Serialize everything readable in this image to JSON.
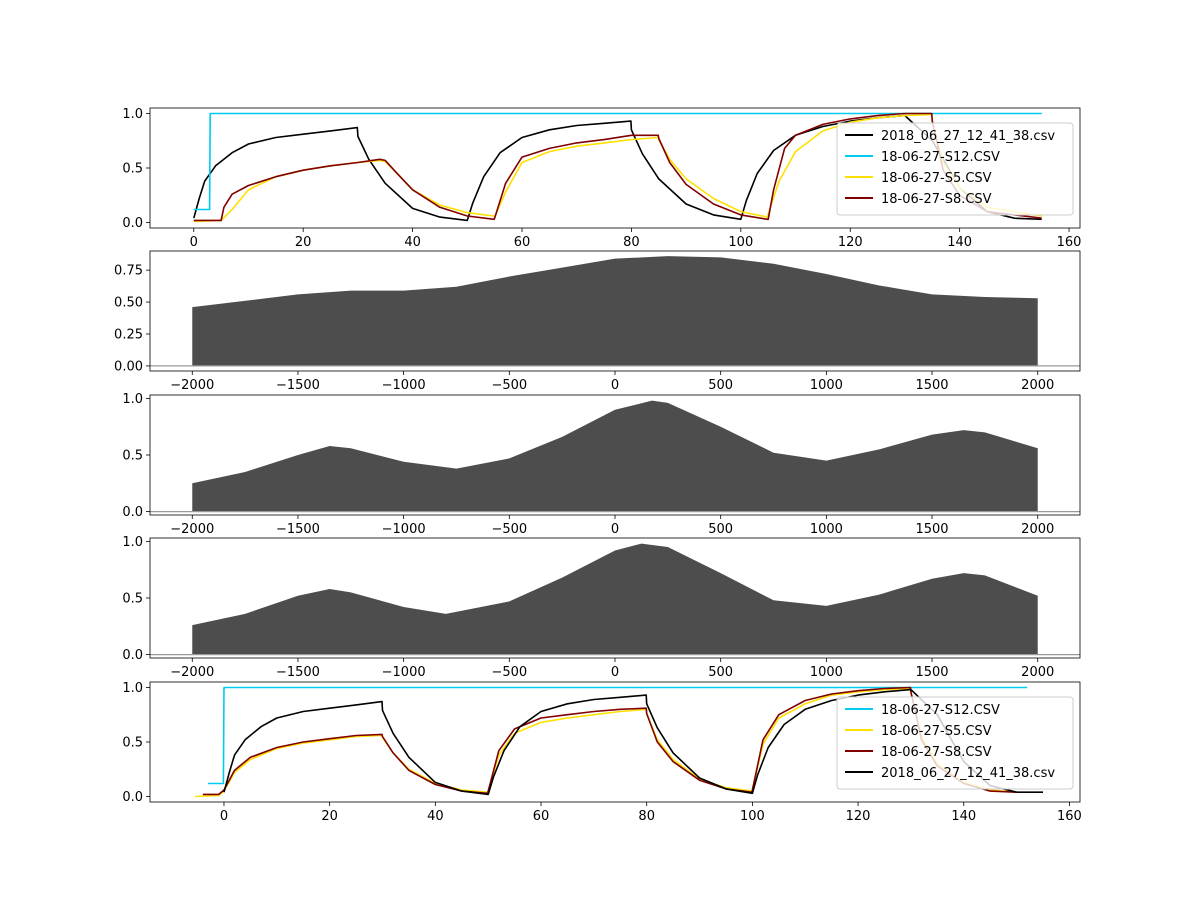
{
  "chart_data": [
    {
      "type": "line",
      "title": "",
      "xlabel": "",
      "ylabel": "",
      "xlim": [
        -8,
        162
      ],
      "ylim": [
        -0.05,
        1.05
      ],
      "xticks": [
        0,
        20,
        40,
        60,
        80,
        100,
        120,
        140,
        160
      ],
      "yticks": [
        0.0,
        0.5,
        1.0
      ],
      "xtick_labels": [
        "0",
        "20",
        "40",
        "60",
        "80",
        "100",
        "120",
        "140",
        "160"
      ],
      "ytick_labels": [
        "0.0",
        "0.5",
        "1.0"
      ],
      "legend_position": "right",
      "legend": [
        "2018_06_27_12_41_38.csv",
        "18-06-27-S12.CSV",
        "18-06-27-S5.CSV",
        "18-06-27-S8.CSV"
      ],
      "series": [
        {
          "name": "2018_06_27_12_41_38.csv",
          "color": "#000000",
          "x": [
            0,
            1,
            2,
            4,
            7,
            10,
            15,
            20,
            25,
            29.9,
            30,
            32,
            35,
            40,
            45,
            50,
            51,
            53,
            56,
            60,
            65,
            70,
            75,
            79.9,
            80,
            82,
            85,
            90,
            95,
            100,
            101,
            103,
            106,
            110,
            115,
            120,
            125,
            130,
            135,
            140,
            145,
            150,
            155
          ],
          "y": [
            0.04,
            0.22,
            0.38,
            0.52,
            0.64,
            0.72,
            0.78,
            0.81,
            0.84,
            0.87,
            0.79,
            0.58,
            0.36,
            0.13,
            0.05,
            0.02,
            0.18,
            0.42,
            0.64,
            0.78,
            0.85,
            0.89,
            0.91,
            0.93,
            0.85,
            0.63,
            0.4,
            0.17,
            0.07,
            0.03,
            0.2,
            0.45,
            0.66,
            0.8,
            0.88,
            0.93,
            0.96,
            0.98,
            0.75,
            0.32,
            0.1,
            0.04,
            0.03
          ]
        },
        {
          "name": "18-06-27-S12.CSV",
          "color": "#00ccf0",
          "x": [
            0,
            2.9,
            3,
            155
          ],
          "y": [
            0.12,
            0.12,
            1.0,
            1.0
          ]
        },
        {
          "name": "18-06-27-S5.CSV",
          "color": "#ffe000",
          "x": [
            0,
            5,
            7,
            10,
            15,
            20,
            25,
            30,
            34,
            35,
            37,
            40,
            45,
            50,
            54.9,
            55,
            57,
            60,
            65,
            70,
            75,
            80,
            84.9,
            85,
            87,
            90,
            95,
            100,
            104.9,
            105,
            107,
            110,
            115,
            120,
            125,
            130,
            134.9,
            135,
            137,
            140,
            145,
            155
          ],
          "y": [
            0.01,
            0.02,
            0.12,
            0.3,
            0.42,
            0.48,
            0.52,
            0.55,
            0.57,
            0.56,
            0.46,
            0.3,
            0.16,
            0.09,
            0.06,
            0.05,
            0.28,
            0.55,
            0.65,
            0.7,
            0.73,
            0.76,
            0.78,
            0.76,
            0.58,
            0.4,
            0.22,
            0.1,
            0.05,
            0.08,
            0.38,
            0.65,
            0.84,
            0.92,
            0.96,
            0.98,
            0.99,
            0.93,
            0.55,
            0.32,
            0.14,
            0.06
          ]
        },
        {
          "name": "18-06-27-S8.CSV",
          "color": "#800000",
          "x": [
            0,
            5,
            5.5,
            7,
            10,
            15,
            20,
            25,
            30,
            34,
            35,
            37,
            40,
            45,
            50,
            54.9,
            55,
            57,
            60,
            65,
            70,
            75,
            80,
            84.9,
            85,
            87,
            90,
            95,
            100,
            104.9,
            105,
            106,
            108,
            110,
            115,
            120,
            125,
            130,
            134.9,
            135,
            137,
            140,
            145,
            155
          ],
          "y": [
            0.02,
            0.02,
            0.14,
            0.26,
            0.34,
            0.42,
            0.48,
            0.52,
            0.55,
            0.58,
            0.57,
            0.46,
            0.3,
            0.14,
            0.06,
            0.03,
            0.04,
            0.36,
            0.6,
            0.68,
            0.73,
            0.76,
            0.8,
            0.8,
            0.77,
            0.55,
            0.35,
            0.17,
            0.07,
            0.03,
            0.03,
            0.3,
            0.68,
            0.8,
            0.9,
            0.95,
            0.98,
            1.0,
            1.0,
            0.93,
            0.48,
            0.25,
            0.1,
            0.04
          ]
        }
      ]
    },
    {
      "type": "area",
      "title": "",
      "xlabel": "",
      "ylabel": "",
      "xlim": [
        -2200,
        2200
      ],
      "ylim": [
        -0.04,
        0.9
      ],
      "xticks": [
        -2000,
        -1500,
        -1000,
        -500,
        0,
        500,
        1000,
        1500,
        2000
      ],
      "yticks": [
        0.0,
        0.25,
        0.5,
        0.75
      ],
      "xtick_labels": [
        "−2000",
        "−1500",
        "−1000",
        "−500",
        "0",
        "500",
        "1000",
        "1500",
        "2000"
      ],
      "ytick_labels": [
        "0.00",
        "0.25",
        "0.50",
        "0.75"
      ],
      "color": "#4d4d4d",
      "baseline": 0,
      "x": [
        -2000,
        -1500,
        -1250,
        -1000,
        -750,
        -500,
        -250,
        0,
        250,
        500,
        750,
        1000,
        1250,
        1500,
        1750,
        2000
      ],
      "y": [
        0.46,
        0.56,
        0.59,
        0.59,
        0.62,
        0.7,
        0.77,
        0.84,
        0.86,
        0.85,
        0.8,
        0.72,
        0.63,
        0.56,
        0.54,
        0.53
      ]
    },
    {
      "type": "area",
      "title": "",
      "xlabel": "",
      "ylabel": "",
      "xlim": [
        -2200,
        2200
      ],
      "ylim": [
        -0.03,
        1.03
      ],
      "xticks": [
        -2000,
        -1500,
        -1000,
        -500,
        0,
        500,
        1000,
        1500,
        2000
      ],
      "yticks": [
        0.0,
        0.5,
        1.0
      ],
      "xtick_labels": [
        "−2000",
        "−1500",
        "−1000",
        "−500",
        "0",
        "500",
        "1000",
        "1500",
        "2000"
      ],
      "ytick_labels": [
        "0.0",
        "0.5",
        "1.0"
      ],
      "color": "#4d4d4d",
      "baseline": 0,
      "x": [
        -2000,
        -1750,
        -1500,
        -1350,
        -1250,
        -1000,
        -750,
        -500,
        -250,
        0,
        175,
        250,
        500,
        750,
        1000,
        1250,
        1500,
        1650,
        1750,
        2000
      ],
      "y": [
        0.25,
        0.35,
        0.5,
        0.58,
        0.56,
        0.44,
        0.38,
        0.47,
        0.66,
        0.9,
        0.98,
        0.96,
        0.75,
        0.52,
        0.45,
        0.55,
        0.68,
        0.72,
        0.7,
        0.56
      ]
    },
    {
      "type": "area",
      "title": "",
      "xlabel": "",
      "ylabel": "",
      "xlim": [
        -2200,
        2200
      ],
      "ylim": [
        -0.03,
        1.03
      ],
      "xticks": [
        -2000,
        -1500,
        -1000,
        -500,
        0,
        500,
        1000,
        1500,
        2000
      ],
      "yticks": [
        0.0,
        0.5,
        1.0
      ],
      "xtick_labels": [
        "−2000",
        "−1500",
        "−1000",
        "−500",
        "0",
        "500",
        "1000",
        "1500",
        "2000"
      ],
      "ytick_labels": [
        "0.0",
        "0.5",
        "1.0"
      ],
      "color": "#4d4d4d",
      "baseline": 0,
      "x": [
        -2000,
        -1750,
        -1500,
        -1350,
        -1250,
        -1000,
        -800,
        -500,
        -250,
        0,
        125,
        250,
        500,
        750,
        1000,
        1250,
        1500,
        1650,
        1750,
        2000
      ],
      "y": [
        0.26,
        0.36,
        0.52,
        0.58,
        0.55,
        0.42,
        0.36,
        0.47,
        0.68,
        0.92,
        0.98,
        0.95,
        0.72,
        0.48,
        0.43,
        0.53,
        0.67,
        0.72,
        0.7,
        0.52
      ]
    },
    {
      "type": "line",
      "title": "",
      "xlabel": "",
      "ylabel": "",
      "xlim": [
        -14,
        162
      ],
      "ylim": [
        -0.05,
        1.05
      ],
      "xticks": [
        0,
        20,
        40,
        60,
        80,
        100,
        120,
        140,
        160
      ],
      "yticks": [
        0.0,
        0.5,
        1.0
      ],
      "xtick_labels": [
        "0",
        "20",
        "40",
        "60",
        "80",
        "100",
        "120",
        "140",
        "160"
      ],
      "ytick_labels": [
        "0.0",
        "0.5",
        "1.0"
      ],
      "legend_position": "right",
      "legend": [
        "18-06-27-S12.CSV",
        "18-06-27-S5.CSV",
        "18-06-27-S8.CSV",
        "2018_06_27_12_41_38.csv"
      ],
      "series": [
        {
          "name": "18-06-27-S12.CSV",
          "color": "#00ccf0",
          "x": [
            -3,
            -0.1,
            0,
            152
          ],
          "y": [
            0.12,
            0.12,
            1.0,
            1.0
          ]
        },
        {
          "name": "18-06-27-S5.CSV",
          "color": "#ffe000",
          "x": [
            -5.5,
            -1,
            0,
            2,
            5,
            10,
            15,
            20,
            25,
            29.9,
            30,
            32,
            35,
            40,
            45,
            49.9,
            50,
            52,
            55,
            60,
            65,
            70,
            75,
            79.9,
            80,
            82,
            85,
            90,
            95,
            99.9,
            100,
            102,
            105,
            110,
            115,
            120,
            125,
            129.9,
            130,
            132,
            135,
            140,
            145,
            150
          ],
          "y": [
            0.0,
            0.01,
            0.05,
            0.22,
            0.34,
            0.44,
            0.49,
            0.52,
            0.55,
            0.56,
            0.54,
            0.4,
            0.25,
            0.12,
            0.06,
            0.04,
            0.05,
            0.38,
            0.58,
            0.68,
            0.72,
            0.75,
            0.78,
            0.8,
            0.76,
            0.52,
            0.34,
            0.16,
            0.08,
            0.05,
            0.07,
            0.48,
            0.72,
            0.85,
            0.93,
            0.96,
            0.98,
            0.99,
            0.95,
            0.55,
            0.3,
            0.13,
            0.06,
            0.04
          ]
        },
        {
          "name": "18-06-27-S8.CSV",
          "color": "#800000",
          "x": [
            -4,
            -1,
            0,
            2,
            5,
            10,
            15,
            20,
            25,
            29.9,
            30,
            32,
            35,
            40,
            45,
            49.9,
            50,
            52,
            55,
            60,
            65,
            70,
            75,
            79.9,
            80,
            82,
            85,
            90,
            95,
            99.9,
            100,
            102,
            105,
            110,
            115,
            120,
            125,
            129.9,
            130,
            132,
            135,
            140,
            145,
            150
          ],
          "y": [
            0.02,
            0.02,
            0.06,
            0.24,
            0.36,
            0.45,
            0.5,
            0.53,
            0.56,
            0.57,
            0.55,
            0.4,
            0.24,
            0.11,
            0.05,
            0.03,
            0.05,
            0.42,
            0.62,
            0.72,
            0.75,
            0.78,
            0.8,
            0.81,
            0.76,
            0.5,
            0.32,
            0.15,
            0.07,
            0.04,
            0.06,
            0.52,
            0.75,
            0.88,
            0.94,
            0.97,
            0.99,
            1.0,
            0.96,
            0.52,
            0.28,
            0.12,
            0.05,
            0.04
          ]
        },
        {
          "name": "2018_06_27_12_41_38.csv",
          "color": "#000000",
          "x": [
            0,
            1,
            2,
            4,
            7,
            10,
            15,
            20,
            25,
            29.9,
            30,
            32,
            35,
            40,
            45,
            50,
            51,
            53,
            56,
            60,
            65,
            70,
            75,
            79.9,
            80,
            82,
            85,
            90,
            95,
            100,
            101,
            103,
            106,
            110,
            115,
            120,
            125,
            130,
            135,
            140,
            145,
            150,
            155
          ],
          "y": [
            0.04,
            0.22,
            0.38,
            0.52,
            0.64,
            0.72,
            0.78,
            0.81,
            0.84,
            0.87,
            0.79,
            0.58,
            0.36,
            0.13,
            0.05,
            0.02,
            0.18,
            0.42,
            0.64,
            0.78,
            0.85,
            0.89,
            0.91,
            0.93,
            0.85,
            0.63,
            0.4,
            0.17,
            0.07,
            0.03,
            0.2,
            0.45,
            0.66,
            0.8,
            0.88,
            0.93,
            0.96,
            0.98,
            0.75,
            0.32,
            0.1,
            0.04,
            0.04
          ]
        }
      ]
    }
  ]
}
